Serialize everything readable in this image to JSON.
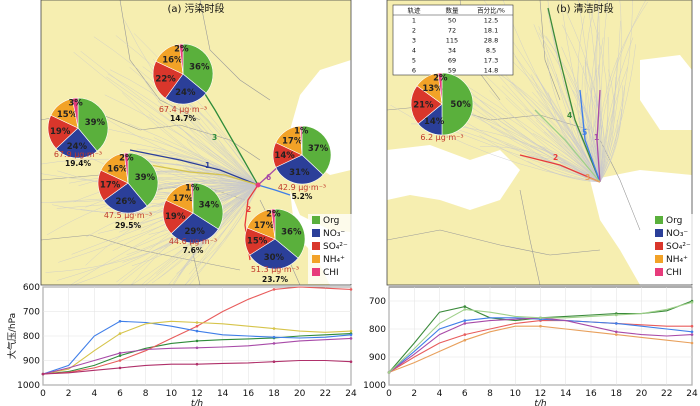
{
  "figure": {
    "left_panel_title": "(a) 污染时段",
    "right_panel_title": "(b) 清洁时段"
  },
  "legend": [
    {
      "name": "Org",
      "color": "#5ab03c"
    },
    {
      "name": "NO₃⁻",
      "color": "#2b3f99"
    },
    {
      "name": "SO₄²⁻",
      "color": "#d9362b"
    },
    {
      "name": "NH₄⁺",
      "color": "#f2a227"
    },
    {
      "name": "CHI",
      "color": "#e73b7b"
    }
  ],
  "colors": {
    "land": "#f6eeb0",
    "sea": "#ffffff",
    "traj": "#c8c8cc"
  },
  "table": {
    "headers": [
      "轨迹",
      "数量",
      "百分比/%"
    ],
    "rows": [
      [
        "1",
        "50",
        "12.5"
      ],
      [
        "2",
        "72",
        "18.1"
      ],
      [
        "3",
        "115",
        "28.8"
      ],
      [
        "4",
        "34",
        "8.5"
      ],
      [
        "5",
        "69",
        "17.3"
      ],
      [
        "6",
        "59",
        "14.8"
      ]
    ]
  },
  "chart_data": [
    {
      "type": "pie",
      "panel": "a",
      "pies": [
        {
          "id": "p1",
          "slices": [
            39,
            24,
            19,
            15,
            3
          ],
          "labels": [
            "39%",
            "24%",
            "19%",
            "15%",
            "3%"
          ],
          "conc": "67.9 μg·m⁻³",
          "share": "19.4%"
        },
        {
          "id": "p2",
          "slices": [
            36,
            24,
            22,
            16,
            2
          ],
          "labels": [
            "36%",
            "24%",
            "22%",
            "16%",
            "2%"
          ],
          "conc": "67.4 μg·m⁻³",
          "share": "14.7%"
        },
        {
          "id": "p3",
          "slices": [
            39,
            26,
            17,
            16,
            2
          ],
          "labels": [
            "39%",
            "26%",
            "17%",
            "16%",
            "2%"
          ],
          "conc": "47.5 μg·m⁻³",
          "share": "29.5%"
        },
        {
          "id": "p4",
          "slices": [
            34,
            29,
            19,
            17,
            1
          ],
          "labels": [
            "34%",
            "29%",
            "19%",
            "17%",
            "1%"
          ],
          "conc": "44.6 μg·m⁻³",
          "share": "7.6%"
        },
        {
          "id": "p5",
          "slices": [
            37,
            31,
            14,
            17,
            1
          ],
          "labels": [
            "37%",
            "31%",
            "14%",
            "17%",
            "1%"
          ],
          "conc": "42.9 μg·m⁻³",
          "share": "5.2%"
        },
        {
          "id": "p6",
          "slices": [
            36,
            30,
            15,
            17,
            2
          ],
          "labels": [
            "36%",
            "30%",
            "15%",
            "17%",
            "2%"
          ],
          "conc": "51.3 μg·m⁻³",
          "share": "23.7%"
        }
      ]
    },
    {
      "type": "pie",
      "panel": "b",
      "pies": [
        {
          "id": "p7",
          "slices": [
            50,
            14,
            21,
            13,
            2
          ],
          "labels": [
            "50%",
            "14%",
            "21%",
            "13%",
            "2%"
          ],
          "conc": "6.2 μg·m⁻³",
          "share": ""
        }
      ]
    },
    {
      "type": "line",
      "panel": "a",
      "xlabel": "t/h",
      "ylabel": "大气压/hPa",
      "xlim": [
        0,
        24
      ],
      "ylim": [
        600,
        1000
      ],
      "y_inverted": true,
      "xticks": [
        0,
        2,
        4,
        6,
        8,
        10,
        12,
        14,
        16,
        18,
        20,
        22,
        24
      ],
      "yticks": [
        600,
        700,
        800,
        900,
        1000
      ],
      "series": [
        {
          "color": "#2e8b3a",
          "x": [
            0,
            2,
            4,
            6,
            8,
            10,
            12,
            14,
            16,
            18,
            20,
            22,
            24
          ],
          "y": [
            955,
            945,
            920,
            880,
            850,
            830,
            820,
            815,
            812,
            808,
            800,
            795,
            790
          ]
        },
        {
          "color": "#e85c5c",
          "x": [
            0,
            2,
            4,
            6,
            8,
            10,
            12,
            14,
            16,
            18,
            20,
            22,
            24
          ],
          "y": [
            955,
            948,
            930,
            900,
            860,
            810,
            760,
            700,
            650,
            610,
            600,
            605,
            610
          ]
        },
        {
          "color": "#3f7ee8",
          "x": [
            0,
            2,
            4,
            6,
            8,
            10,
            12,
            14,
            16,
            18,
            20,
            22,
            24
          ],
          "y": [
            955,
            920,
            800,
            740,
            745,
            760,
            780,
            795,
            800,
            805,
            808,
            805,
            795
          ]
        },
        {
          "color": "#d6c44a",
          "x": [
            0,
            2,
            4,
            6,
            8,
            10,
            12,
            14,
            16,
            18,
            20,
            22,
            24
          ],
          "y": [
            955,
            935,
            860,
            790,
            750,
            740,
            745,
            750,
            760,
            770,
            780,
            785,
            780
          ]
        },
        {
          "color": "#a84ba8",
          "x": [
            0,
            2,
            4,
            6,
            8,
            10,
            12,
            14,
            16,
            18,
            20,
            22,
            24
          ],
          "y": [
            955,
            930,
            900,
            870,
            855,
            850,
            848,
            845,
            840,
            830,
            820,
            815,
            810
          ]
        },
        {
          "color": "#b0306a",
          "x": [
            0,
            2,
            4,
            6,
            8,
            10,
            12,
            14,
            16,
            18,
            20,
            22,
            24
          ],
          "y": [
            955,
            950,
            940,
            930,
            920,
            915,
            915,
            912,
            910,
            905,
            900,
            900,
            905
          ]
        }
      ]
    },
    {
      "type": "line",
      "panel": "b",
      "xlabel": "t/h",
      "xlim": [
        0,
        24
      ],
      "ylim": [
        650,
        1000
      ],
      "y_inverted": true,
      "xticks": [
        0,
        2,
        4,
        6,
        8,
        10,
        12,
        14,
        16,
        18,
        20,
        22,
        24
      ],
      "yticks": [
        700,
        800,
        900,
        1000
      ],
      "series": [
        {
          "color": "#3a8a3a",
          "x": [
            0,
            2,
            4,
            6,
            8,
            10,
            12,
            14,
            16,
            18,
            20,
            22,
            24
          ],
          "y": [
            955,
            850,
            740,
            720,
            760,
            770,
            760,
            755,
            750,
            745,
            745,
            735,
            700
          ]
        },
        {
          "color": "#e85c5c",
          "x": [
            0,
            2,
            4,
            6,
            8,
            10,
            12,
            14,
            16,
            18,
            20,
            22,
            24
          ],
          "y": [
            955,
            900,
            850,
            820,
            800,
            780,
            770,
            770,
            775,
            780,
            785,
            790,
            790
          ]
        },
        {
          "color": "#3f7ee8",
          "x": [
            0,
            2,
            4,
            6,
            8,
            10,
            12,
            14,
            16,
            18,
            20,
            22,
            24
          ],
          "y": [
            955,
            880,
            800,
            770,
            760,
            760,
            765,
            770,
            775,
            780,
            790,
            800,
            810
          ]
        },
        {
          "color": "#e8a05c",
          "x": [
            0,
            2,
            4,
            6,
            8,
            10,
            12,
            14,
            16,
            18,
            20,
            22,
            24
          ],
          "y": [
            955,
            920,
            880,
            840,
            810,
            790,
            790,
            800,
            810,
            820,
            830,
            840,
            850
          ]
        },
        {
          "color": "#a84ba8",
          "x": [
            0,
            2,
            4,
            6,
            8,
            10,
            12,
            14,
            16,
            18,
            20,
            22,
            24
          ],
          "y": [
            955,
            890,
            820,
            780,
            770,
            765,
            760,
            770,
            790,
            810,
            820,
            825,
            820
          ]
        },
        {
          "color": "#9fd08a",
          "x": [
            0,
            2,
            4,
            6,
            8,
            10,
            12,
            14,
            16,
            18,
            20,
            22,
            24
          ],
          "y": [
            955,
            870,
            780,
            730,
            740,
            755,
            760,
            760,
            755,
            750,
            745,
            730,
            705
          ]
        }
      ]
    }
  ]
}
